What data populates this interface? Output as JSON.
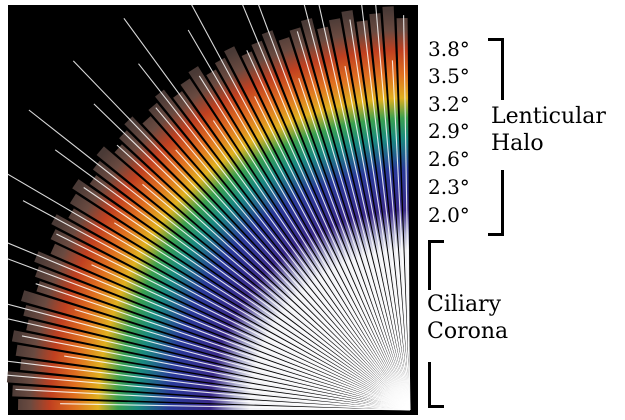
{
  "scale": {
    "ticks": [
      {
        "label": "3.8°",
        "value": 3.8
      },
      {
        "label": "3.5°",
        "value": 3.5
      },
      {
        "label": "3.2°",
        "value": 3.2
      },
      {
        "label": "2.9°",
        "value": 2.9
      },
      {
        "label": "2.6°",
        "value": 2.6
      },
      {
        "label": "2.3°",
        "value": 2.3
      },
      {
        "label": "2.0°",
        "value": 2.0
      }
    ]
  },
  "regions": {
    "lenticular": {
      "line1": "Lenticular",
      "line2": "Halo"
    },
    "ciliary": {
      "line1": "Ciliary",
      "line2": "Corona"
    }
  },
  "colors": {
    "background": "#000000",
    "inner_white": "#ffffff",
    "violet": "#3a2a8a",
    "indigo": "#2a3a9a",
    "teal": "#1a8a80",
    "green": "#3aa050",
    "yellow": "#e0b020",
    "orange": "#e07020",
    "red": "#c04020",
    "brown": "#6a4a40"
  }
}
